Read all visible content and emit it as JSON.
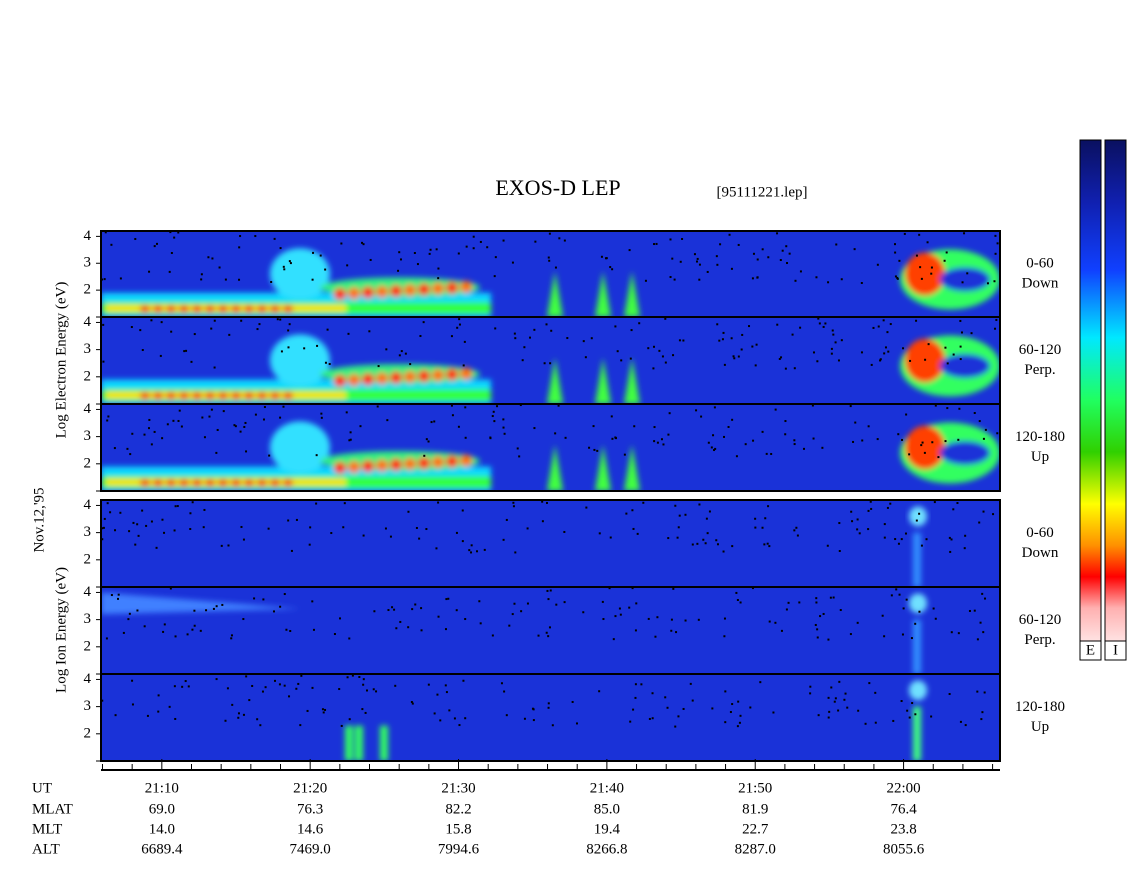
{
  "title": "EXOS-D LEP",
  "file": "[95111221.lep]",
  "ylabels": {
    "electron": "Log  Electron  Energy (eV)",
    "ion": "Log   Ion   Energy (eV)",
    "date": "Nov.12,'95"
  },
  "panels": [
    {
      "species": "electron",
      "angle": "0-60",
      "direction": "Down"
    },
    {
      "species": "electron",
      "angle": "60-120",
      "direction": "Perp."
    },
    {
      "species": "electron",
      "angle": "120-180",
      "direction": "Up"
    },
    {
      "species": "ion",
      "angle": "0-60",
      "direction": "Down"
    },
    {
      "species": "ion",
      "angle": "60-120",
      "direction": "Perp."
    },
    {
      "species": "ion",
      "angle": "120-180",
      "direction": "Up"
    }
  ],
  "ylim": [
    1,
    4.2
  ],
  "yticks": [
    2,
    3,
    4
  ],
  "yminor": [
    1
  ],
  "time_axis": {
    "xlim": [
      1265.9,
      1326.5
    ],
    "ticks": [
      {
        "value": 1270,
        "label": "21:10"
      },
      {
        "value": 1280,
        "label": "21:20"
      },
      {
        "value": 1290,
        "label": "21:30"
      },
      {
        "value": 1300,
        "label": "21:40"
      },
      {
        "value": 1310,
        "label": "21:50"
      },
      {
        "value": 1320,
        "label": "22:00"
      }
    ],
    "minor": [
      1266,
      1268,
      1272,
      1274,
      1276,
      1278,
      1282,
      1284,
      1286,
      1288,
      1292,
      1294,
      1296,
      1298,
      1302,
      1304,
      1306,
      1308,
      1312,
      1314,
      1316,
      1318,
      1322,
      1324,
      1326
    ]
  },
  "ephemeris": [
    {
      "name": "UT"
    },
    {
      "name": "MLAT",
      "values": [
        "69.0",
        "76.3",
        "82.2",
        "85.0",
        "81.9",
        "76.4"
      ]
    },
    {
      "name": "MLT",
      "values": [
        "14.0",
        "14.6",
        "15.8",
        "19.4",
        "22.7",
        "23.8"
      ]
    },
    {
      "name": "ALT",
      "values": [
        "6689.4",
        "7469.0",
        "7994.6",
        "8266.8",
        "8287.0",
        "8055.6"
      ]
    }
  ],
  "colorbar": {
    "labels": [
      "E",
      "I"
    ]
  }
}
